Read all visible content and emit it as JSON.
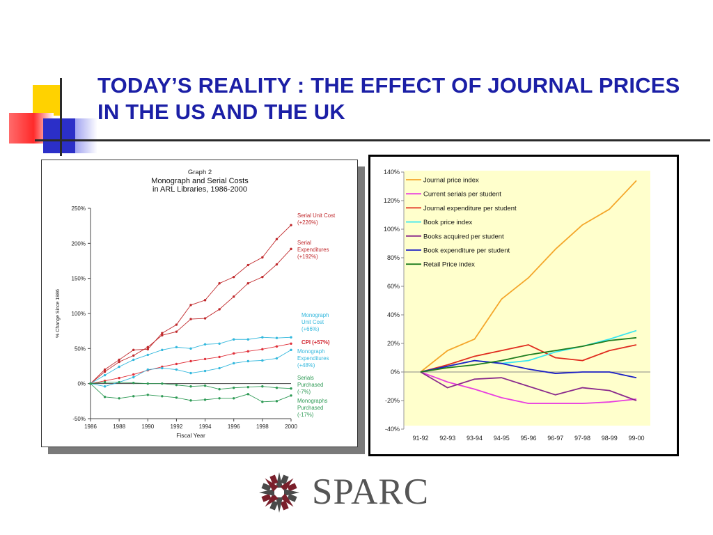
{
  "slide": {
    "title": "TODAY’S REALITY : THE EFFECT OF JOURNAL PRICES IN THE US AND THE UK",
    "logo_text": "SPARC",
    "colors": {
      "title": "#1b1fa6",
      "yellow": "#ffd200",
      "red": "#ff2a2a",
      "blue": "#2b2fc8"
    }
  },
  "chart_data": [
    {
      "type": "line",
      "title": "Graph 2",
      "subtitle": "Monograph and Serial Costs\nin ARL Libraries, 1986-2000",
      "xlabel": "Fiscal Year",
      "ylabel": "% Change Since 1986",
      "xlim": [
        1986,
        2000
      ],
      "ylim": [
        -50,
        250
      ],
      "x_ticks": [
        "1986",
        "1988",
        "1990",
        "1992",
        "1994",
        "1996",
        "1998",
        "2000"
      ],
      "y_ticks": [
        "250%",
        "200%",
        "150%",
        "100%",
        "50%",
        "0%",
        "-50%"
      ],
      "grid": false,
      "x": [
        1986,
        1987,
        1988,
        1989,
        1990,
        1991,
        1992,
        1993,
        1994,
        1995,
        1996,
        1997,
        1998,
        1999,
        2000
      ],
      "series": [
        {
          "name": "Serial Unit Cost (+226%)",
          "color": "#c0282b",
          "values": [
            0,
            20,
            34,
            48,
            49,
            72,
            84,
            112,
            119,
            143,
            152,
            169,
            180,
            206,
            226
          ]
        },
        {
          "name": "Serial Expenditures (+192%)",
          "color": "#c0282b",
          "values": [
            0,
            17,
            31,
            40,
            52,
            69,
            74,
            92,
            93,
            106,
            124,
            143,
            152,
            170,
            192
          ]
        },
        {
          "name": "Monograph Unit Cost (+66%)",
          "color": "#33b8dd",
          "values": [
            0,
            12,
            24,
            34,
            41,
            48,
            52,
            50,
            56,
            57,
            63,
            63,
            66,
            65,
            66
          ]
        },
        {
          "name": "CPI (+57%)",
          "color": "#e0303a",
          "values": [
            0,
            4,
            8,
            13,
            19,
            24,
            28,
            32,
            35,
            38,
            43,
            46,
            49,
            53,
            57
          ]
        },
        {
          "name": "Monograph Expenditures (+48%)",
          "color": "#33b8dd",
          "values": [
            0,
            -4,
            2,
            9,
            20,
            22,
            20,
            15,
            18,
            22,
            29,
            32,
            33,
            36,
            48
          ]
        },
        {
          "name": "Serials Purchased (-7%)",
          "color": "#2e9a55",
          "values": [
            0,
            2,
            2,
            1,
            0,
            0,
            -2,
            -4,
            -3,
            -8,
            -6,
            -5,
            -4,
            -6,
            -7
          ]
        },
        {
          "name": "Monographs Purchased (-17%)",
          "color": "#2e9a55",
          "values": [
            0,
            -19,
            -21,
            -18,
            -16,
            -18,
            -20,
            -24,
            -23,
            -21,
            -21,
            -15,
            -26,
            -25,
            -17
          ]
        }
      ],
      "labels": {
        "serial_unit_cost": [
          "Serial Unit Cost",
          "(+226%)"
        ],
        "serial_expenditures": [
          "Serial",
          "Expenditures",
          "(+192%)"
        ],
        "monograph_unit_cost": [
          "Monograph",
          "Unit Cost",
          "(+66%)"
        ],
        "cpi": "CPI (+57%)",
        "monograph_expenditures": [
          "Monograph",
          "Expenditures",
          "(+48%)"
        ],
        "serials_purchased": [
          "Serials",
          "Purchased",
          "(-7%)"
        ],
        "monographs_purchased": [
          "Monographs",
          "Purchased",
          "(-17%)"
        ]
      }
    },
    {
      "type": "line",
      "categories": [
        "91-92",
        "92-93",
        "93-94",
        "94-95",
        "95-96",
        "96-97",
        "97-98",
        "98-99",
        "99-00"
      ],
      "ylim": [
        -40,
        140
      ],
      "y_ticks": [
        "140%",
        "120%",
        "100%",
        "80%",
        "60%",
        "40%",
        "20%",
        "0%",
        "-20%",
        "-40%"
      ],
      "grid": false,
      "legend_position": "top-left",
      "background": "#ffffcc",
      "series": [
        {
          "name": "Journal price index",
          "color": "#f4a62a",
          "values": [
            0,
            15,
            23,
            51,
            66,
            86,
            103,
            114,
            134
          ]
        },
        {
          "name": "Current serials per student",
          "color": "#e83ee0",
          "values": [
            0,
            -7,
            -12,
            -18,
            -22,
            -22,
            -22,
            -21,
            -19
          ]
        },
        {
          "name": "Journal expenditure per student",
          "color": "#e02b1e",
          "values": [
            0,
            5,
            11,
            15,
            19,
            10,
            8,
            15,
            19
          ]
        },
        {
          "name": "Book price index",
          "color": "#38e6f0",
          "values": [
            0,
            4,
            8,
            6,
            8,
            14,
            18,
            23,
            29
          ]
        },
        {
          "name": "Books acquired per student",
          "color": "#8a2a8c",
          "values": [
            0,
            -11,
            -5,
            -4,
            -10,
            -16,
            -11,
            -13,
            -20
          ]
        },
        {
          "name": "Book expenditure per student",
          "color": "#1b1fc4",
          "values": [
            0,
            4,
            8,
            6,
            2,
            -1,
            0,
            0,
            -4
          ]
        },
        {
          "name": "Retail Price index",
          "color": "#1e7d1e",
          "values": [
            0,
            3,
            5,
            8,
            12,
            15,
            18,
            22,
            24
          ]
        }
      ]
    }
  ]
}
